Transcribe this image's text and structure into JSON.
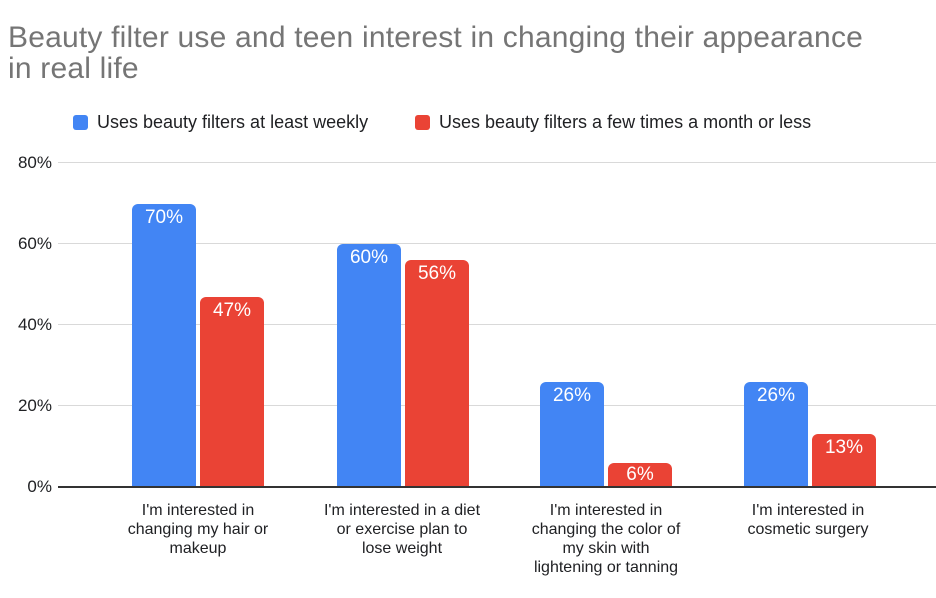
{
  "chart_data": {
    "type": "bar",
    "title": "Beauty filter use and teen interest in changing their appearance in real life",
    "title_display": "Beauty filter use and teen interest in changing their appearance\nin real life",
    "categories": [
      "I'm interested in changing my hair or makeup",
      "I'm interested in a diet or exercise plan to lose weight",
      "I'm interested in changing the color of my skin with lightening or tanning",
      "I'm interested in cosmetic surgery"
    ],
    "categories_display": [
      "I'm interested in\nchanging my hair or\nmakeup",
      "I'm interested in a diet\nor exercise plan to\nlose weight",
      "I'm interested in\nchanging the color of\nmy skin with\nlightening or tanning",
      "I'm interested in\ncosmetic surgery"
    ],
    "series": [
      {
        "name": "Uses beauty filters at least weekly",
        "color": "#4285F4",
        "values": [
          70,
          60,
          26,
          26
        ],
        "labels": [
          "70%",
          "60%",
          "26%",
          "26%"
        ]
      },
      {
        "name": "Uses beauty filters a few times a month or less",
        "color": "#EA4335",
        "values": [
          47,
          56,
          6,
          13
        ],
        "labels": [
          "47%",
          "56%",
          "6%",
          "13%"
        ]
      }
    ],
    "yticks": [
      "80%",
      "60%",
      "40%",
      "20%",
      "0%"
    ],
    "ylim": [
      0,
      80
    ],
    "unit": "%",
    "grid": true,
    "legend_position": "top",
    "data_label_style": "inside-top-white",
    "colors": {
      "grid": "#d9d9d9",
      "axis_line": "#333333",
      "title_text": "#757575",
      "label_text": "#202124"
    }
  }
}
